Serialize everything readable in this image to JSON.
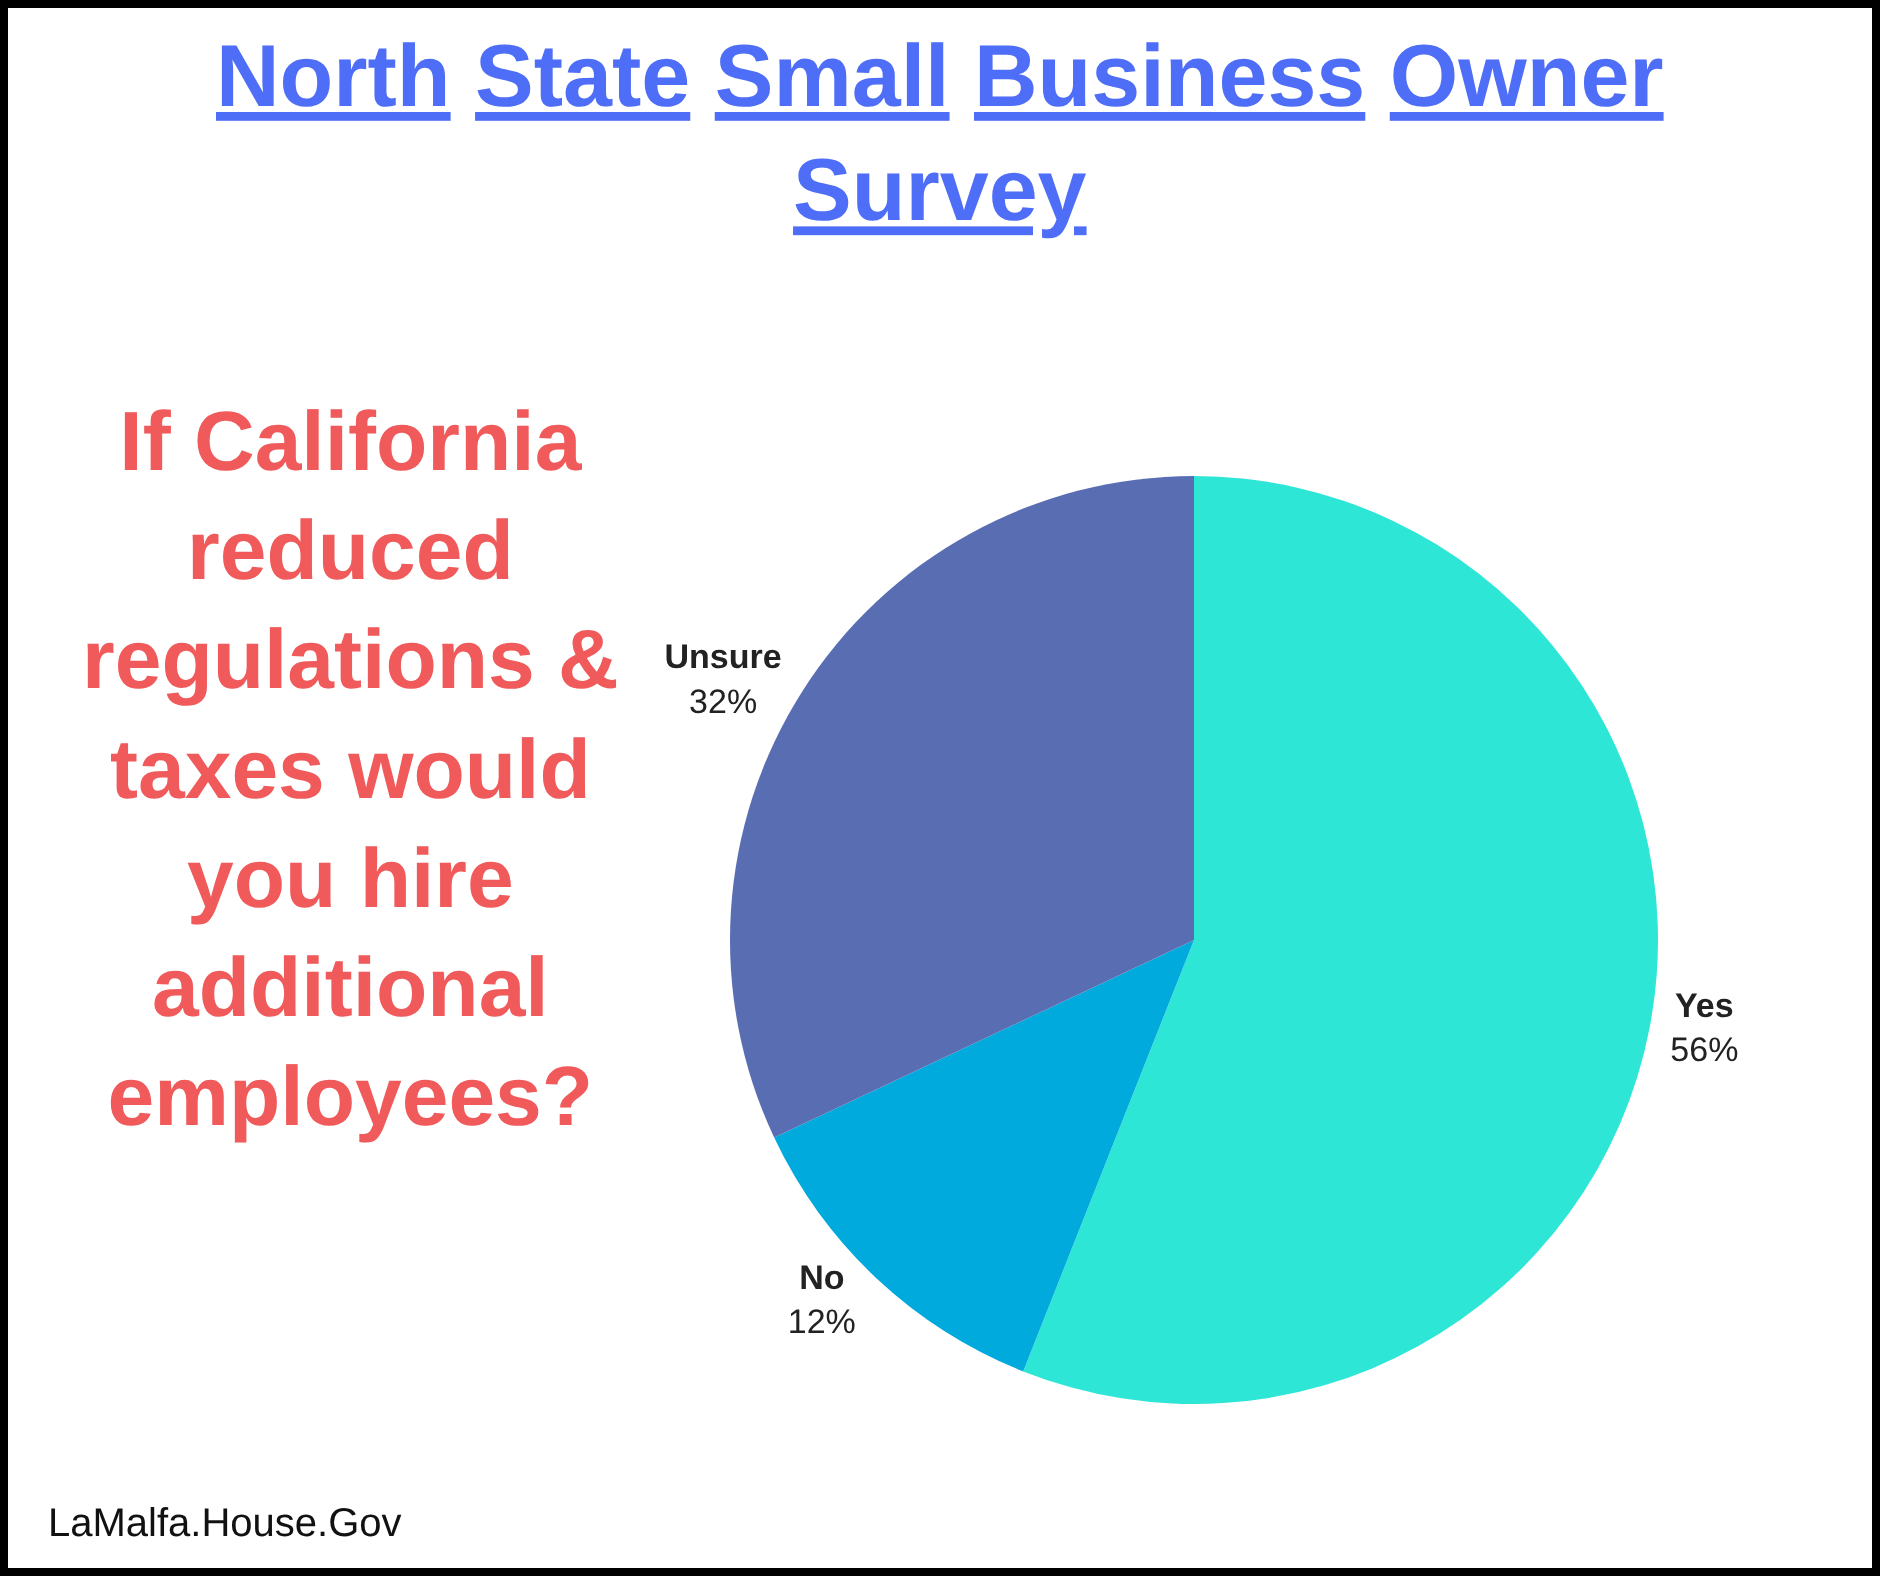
{
  "chart_data": {
    "type": "pie",
    "title": "North State Small Business Owner Survey",
    "subtitle": "If California reduced regulations & taxes would you hire additional employees?",
    "categories": [
      "Yes",
      "No",
      "Unsure"
    ],
    "values": [
      56,
      12,
      32
    ],
    "value_labels": [
      "56%",
      "12%",
      "32%"
    ],
    "colors": [
      "#2ee6d6",
      "#00aadd",
      "#596db3"
    ],
    "annotations": [
      "LaMalfa.House.Gov"
    ],
    "legend": false
  }
}
